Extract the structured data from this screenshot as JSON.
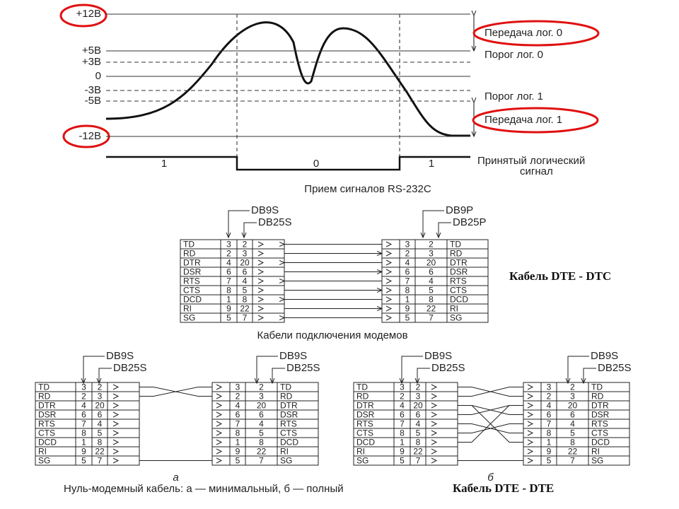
{
  "voltage_diagram": {
    "levels": [
      "+12В",
      "+5В",
      "+3В",
      "0",
      "-3В",
      "-5В",
      "-12В"
    ],
    "threshold_labels": [
      "Передача лог. 0",
      "Порог лог. 0",
      "Порог лог. 1",
      "Передача лог. 1"
    ],
    "signal_bits": [
      "1",
      "0",
      "1"
    ],
    "signal_label": [
      "Принятый логический",
      "сигнал"
    ],
    "caption": "Прием сигналов RS-232C"
  },
  "modem_cable": {
    "connectors": {
      "left": [
        "DB9S",
        "DB25S"
      ],
      "right": [
        "DB9P",
        "DB25P"
      ]
    },
    "left_table": [
      [
        "TD",
        "3",
        "2"
      ],
      [
        "RD",
        "2",
        "3"
      ],
      [
        "DTR",
        "4",
        "20"
      ],
      [
        "DSR",
        "6",
        "6"
      ],
      [
        "RTS",
        "7",
        "4"
      ],
      [
        "CTS",
        "8",
        "5"
      ],
      [
        "DCD",
        "1",
        "8"
      ],
      [
        "RI",
        "9",
        "22"
      ],
      [
        "SG",
        "5",
        "7"
      ]
    ],
    "right_table": [
      [
        "3",
        "2",
        "TD"
      ],
      [
        "2",
        "3",
        "RD"
      ],
      [
        "4",
        "20",
        "DTR"
      ],
      [
        "6",
        "6",
        "DSR"
      ],
      [
        "7",
        "4",
        "RTS"
      ],
      [
        "8",
        "5",
        "CTS"
      ],
      [
        "1",
        "8",
        "DCD"
      ],
      [
        "9",
        "22",
        "RI"
      ],
      [
        "5",
        "7",
        "SG"
      ]
    ],
    "caption": "Кабели подключения модемов",
    "note": "Кабель DTE - DTC"
  },
  "null_modem_cable": {
    "variants": [
      {
        "label": "а",
        "connectors": {
          "left": [
            "DB9S",
            "DB25S"
          ],
          "right": [
            "DB9S",
            "DB25S"
          ]
        },
        "left_table": [
          [
            "TD",
            "3",
            "2"
          ],
          [
            "RD",
            "2",
            "3"
          ],
          [
            "DTR",
            "4",
            "20"
          ],
          [
            "DSR",
            "6",
            "6"
          ],
          [
            "RTS",
            "7",
            "4"
          ],
          [
            "CTS",
            "8",
            "5"
          ],
          [
            "DCD",
            "1",
            "8"
          ],
          [
            "RI",
            "9",
            "22"
          ],
          [
            "SG",
            "5",
            "7"
          ]
        ],
        "right_table": [
          [
            "3",
            "2",
            "TD"
          ],
          [
            "2",
            "3",
            "RD"
          ],
          [
            "4",
            "20",
            "DTR"
          ],
          [
            "6",
            "6",
            "DSR"
          ],
          [
            "7",
            "4",
            "RTS"
          ],
          [
            "8",
            "5",
            "CTS"
          ],
          [
            "1",
            "8",
            "DCD"
          ],
          [
            "9",
            "22",
            "RI"
          ],
          [
            "5",
            "7",
            "SG"
          ]
        ]
      },
      {
        "label": "б",
        "connectors": {
          "left": [
            "DB9S",
            "DB25S"
          ],
          "right": [
            "DB9S",
            "DB25S"
          ]
        },
        "left_table": [
          [
            "TD",
            "3",
            "2"
          ],
          [
            "RD",
            "2",
            "3"
          ],
          [
            "DTR",
            "4",
            "20"
          ],
          [
            "DSR",
            "6",
            "6"
          ],
          [
            "RTS",
            "7",
            "4"
          ],
          [
            "CTS",
            "8",
            "5"
          ],
          [
            "DCD",
            "1",
            "8"
          ],
          [
            "RI",
            "9",
            "22"
          ],
          [
            "SG",
            "5",
            "7"
          ]
        ],
        "right_table": [
          [
            "3",
            "2",
            "TD"
          ],
          [
            "2",
            "3",
            "RD"
          ],
          [
            "4",
            "20",
            "DTR"
          ],
          [
            "6",
            "6",
            "DSR"
          ],
          [
            "7",
            "4",
            "RTS"
          ],
          [
            "8",
            "5",
            "CTS"
          ],
          [
            "1",
            "8",
            "DCD"
          ],
          [
            "9",
            "22",
            "RI"
          ],
          [
            "5",
            "7",
            "SG"
          ]
        ]
      }
    ],
    "caption": "Нуль-модемный кабель: а — минимальный, б — полный",
    "note": "Кабель DTE - DTE"
  }
}
